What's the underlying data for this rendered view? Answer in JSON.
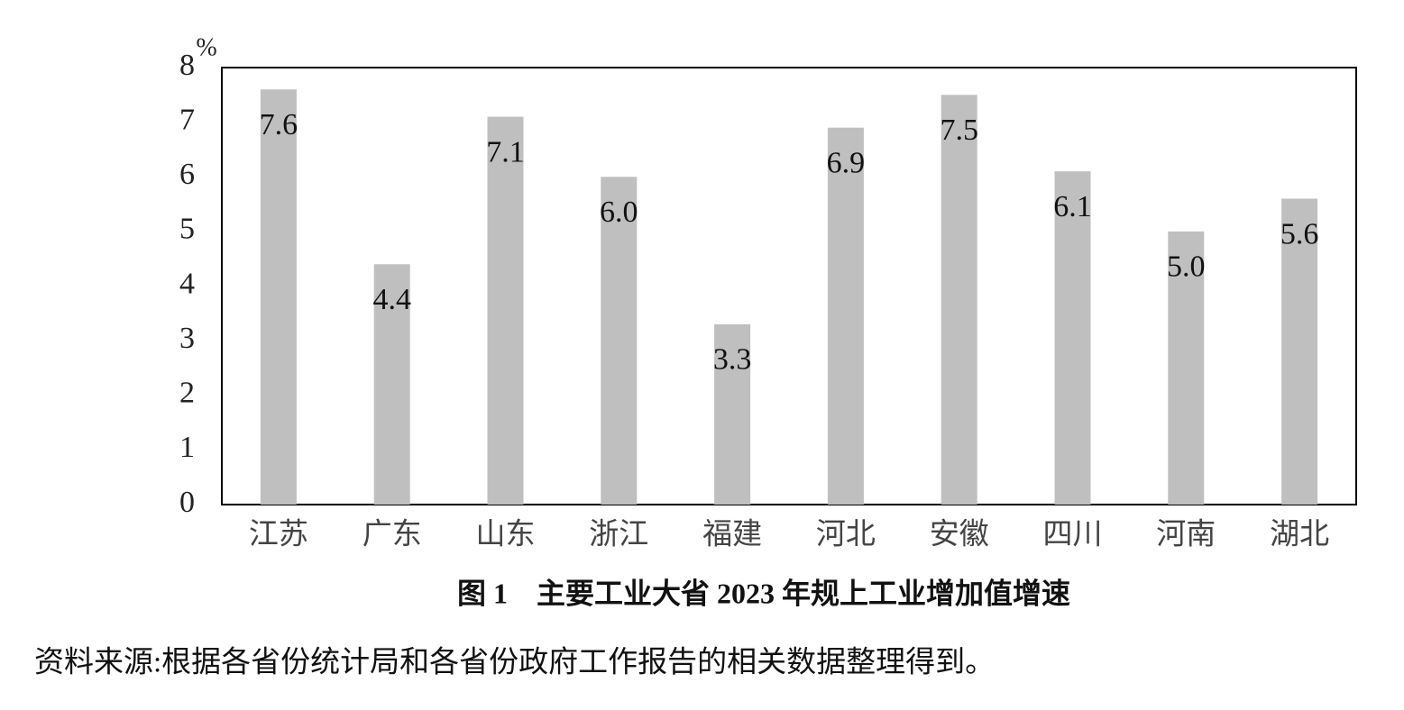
{
  "chart_data": {
    "type": "bar",
    "title": "图 1　主要工业大省 2023 年规上工业增加值增速",
    "ylabel": "%",
    "source": "资料来源:根据各省份统计局和各省份政府工作报告的相关数据整理得到。",
    "categories": [
      "江苏",
      "广东",
      "山东",
      "浙江",
      "福建",
      "河北",
      "安徽",
      "四川",
      "河南",
      "湖北"
    ],
    "values": [
      7.6,
      4.4,
      7.1,
      6.0,
      3.3,
      6.9,
      7.5,
      6.1,
      5.0,
      5.6
    ],
    "value_labels": [
      "7.6",
      "4.4",
      "7.1",
      "6.0",
      "3.3",
      "6.9",
      "7.5",
      "6.1",
      "5.0",
      "5.6"
    ],
    "color": "#bfbfbf",
    "ylim": [
      0,
      8
    ],
    "yticks": [
      0,
      1,
      2,
      3,
      4,
      5,
      6,
      7,
      8
    ],
    "grid": false
  }
}
